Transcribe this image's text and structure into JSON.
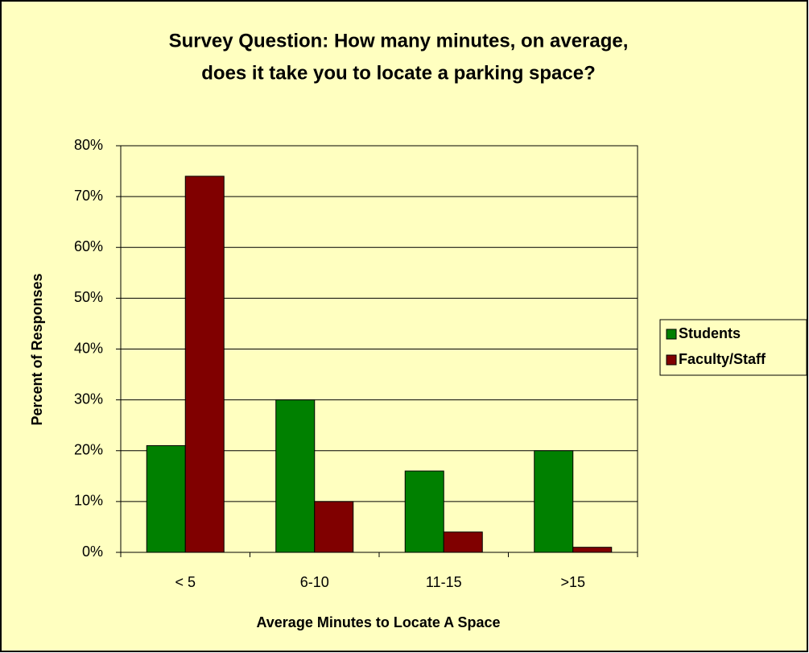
{
  "chart_data": {
    "type": "bar",
    "title": [
      "Survey Question: How many minutes, on average,",
      "does it take you to locate a parking space?"
    ],
    "x_label": "Average Minutes to Locate A Space",
    "y_label": "Percent of Responses",
    "categories": [
      "< 5",
      "6-10",
      "11-15",
      ">15"
    ],
    "series": [
      {
        "name": "Students",
        "color": "#008000",
        "values": [
          21,
          30,
          16,
          20
        ]
      },
      {
        "name": "Faculty/Staff",
        "color": "#800000",
        "values": [
          74,
          10,
          4,
          1
        ]
      }
    ],
    "ylim": [
      0,
      80
    ],
    "yticks": [
      {
        "value": 0,
        "label": "0%"
      },
      {
        "value": 10,
        "label": "10%"
      },
      {
        "value": 20,
        "label": "20%"
      },
      {
        "value": 30,
        "label": "30%"
      },
      {
        "value": 40,
        "label": "40%"
      },
      {
        "value": 50,
        "label": "50%"
      },
      {
        "value": 60,
        "label": "60%"
      },
      {
        "value": 70,
        "label": "70%"
      },
      {
        "value": 80,
        "label": "80%"
      }
    ],
    "grid": true,
    "legend": "right"
  }
}
